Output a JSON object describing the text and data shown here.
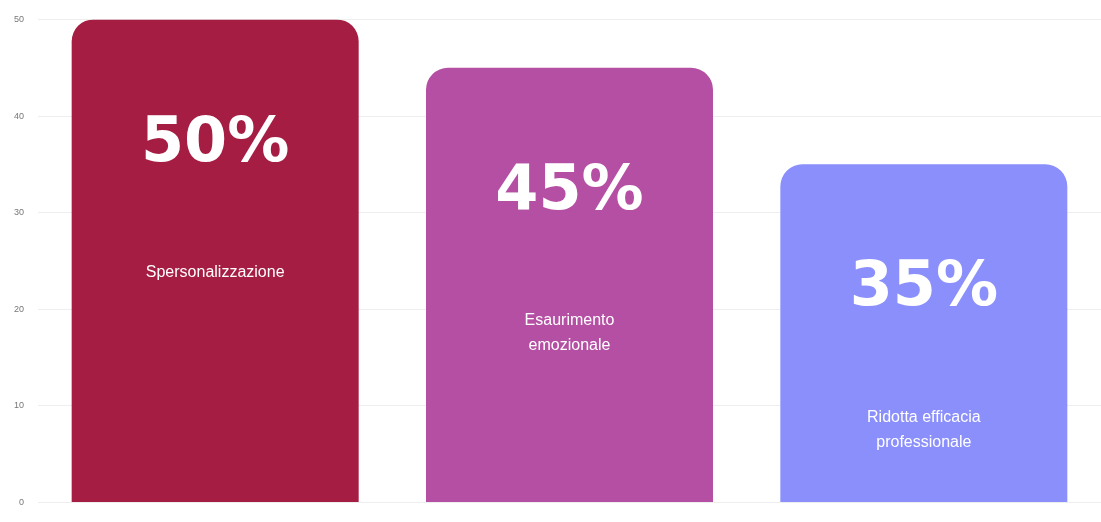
{
  "chart_data": {
    "type": "bar",
    "categories": [
      "Spersonalizzazione",
      "Esaurimento emozionale",
      "Ridotta efficacia professionale"
    ],
    "values": [
      50,
      45,
      35
    ],
    "colors": [
      "#a51d42",
      "#b44fa3",
      "#8a8ffc"
    ],
    "value_labels": [
      "50%",
      "45%",
      "35%"
    ],
    "ylim": [
      0,
      50
    ],
    "yticks": [
      0,
      10,
      20,
      30,
      40,
      50
    ],
    "grid": "y",
    "tick_labels": "y",
    "legend": false
  }
}
